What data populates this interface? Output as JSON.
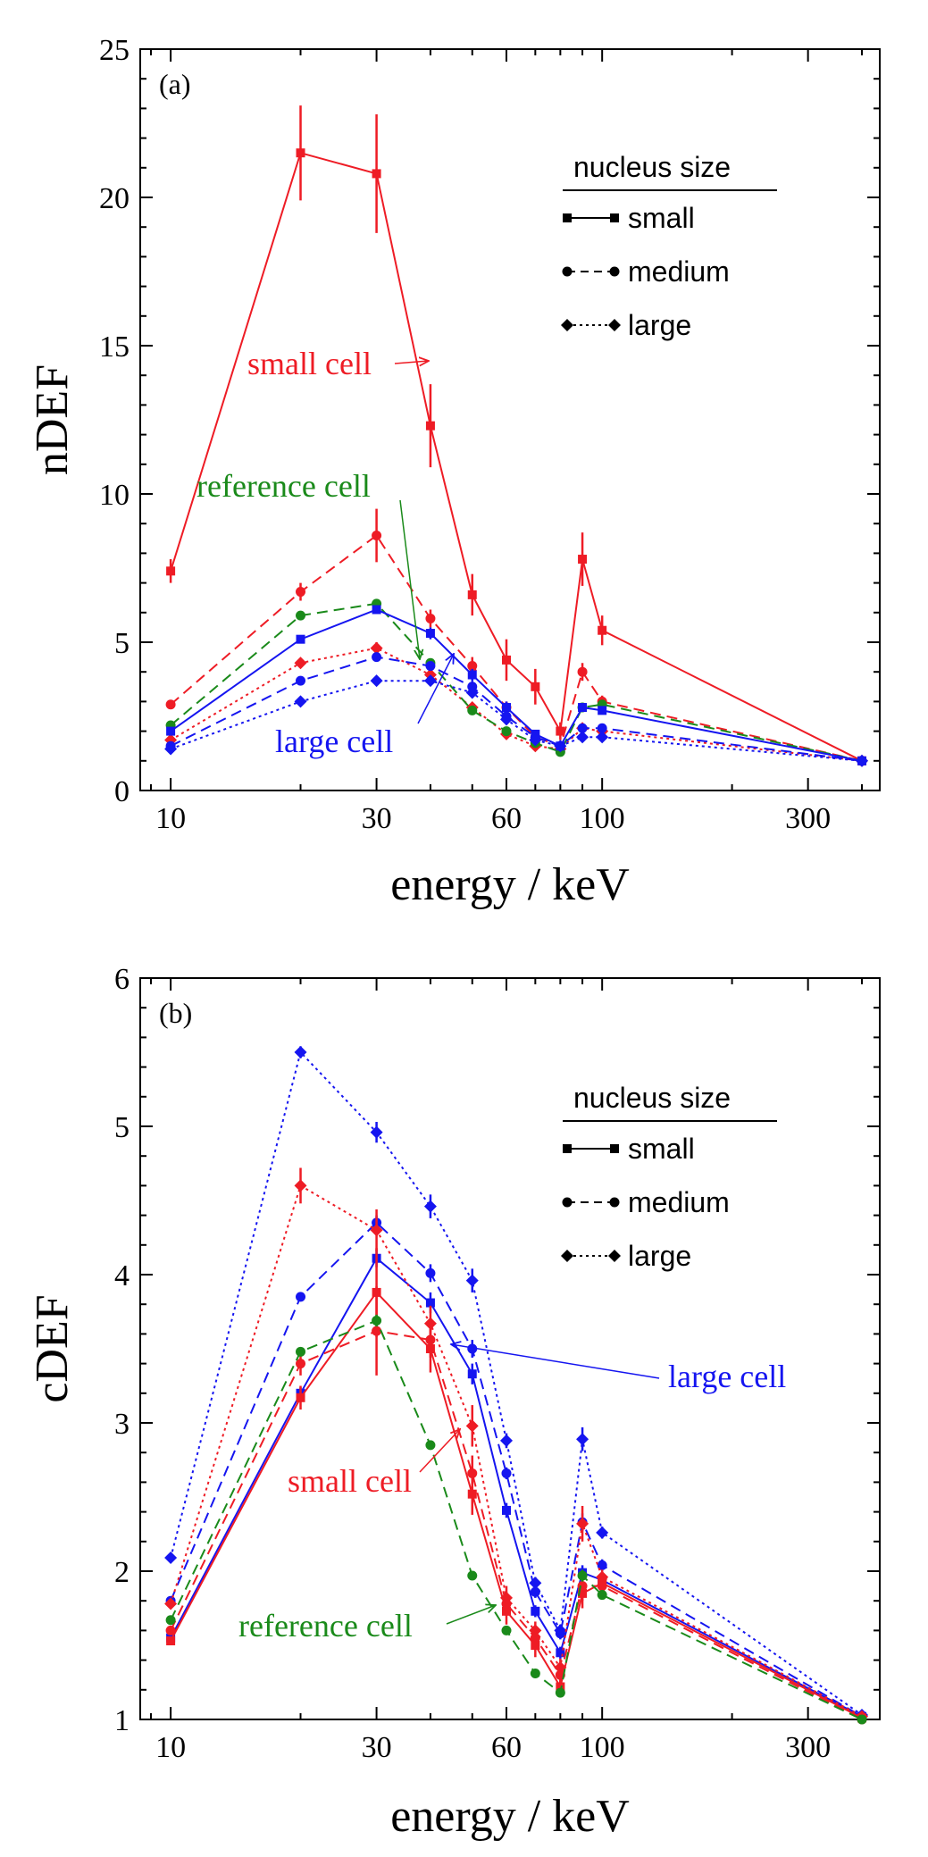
{
  "colors": {
    "red": "#ee1c25",
    "green": "#1a8a1a",
    "blue": "#1515f0"
  },
  "chart_data": [
    {
      "type": "line",
      "panel_label": "(a)",
      "ylabel": "nDEF",
      "xlabel": "energy / keV",
      "xscale": "log",
      "xlim": [
        8.5,
        440
      ],
      "ylim": [
        0,
        25
      ],
      "yticks": [
        0,
        5,
        10,
        15,
        20,
        25
      ],
      "xticks": [
        10,
        30,
        60,
        100,
        300
      ],
      "legend_title": "nucleus size",
      "legend": [
        {
          "label": "small",
          "style": "solid",
          "marker": "square"
        },
        {
          "label": "medium",
          "style": "dashed",
          "marker": "circle"
        },
        {
          "label": "large",
          "style": "dotted",
          "marker": "diamond"
        }
      ],
      "annotations": [
        {
          "text": "small cell",
          "color": "red"
        },
        {
          "text": "reference cell",
          "color": "green"
        },
        {
          "text": "large cell",
          "color": "blue"
        }
      ],
      "series": [
        {
          "name": "small cell, small nucleus",
          "color": "red",
          "style": "solid",
          "marker": "square",
          "x": [
            10,
            20,
            30,
            40,
            50,
            60,
            70,
            80,
            90,
            100,
            400
          ],
          "y": [
            7.4,
            21.5,
            20.8,
            12.3,
            6.6,
            4.4,
            3.5,
            2.0,
            7.8,
            5.4,
            1.0
          ],
          "err": [
            0.4,
            1.6,
            2.0,
            1.4,
            0.7,
            0.7,
            0.6,
            0.3,
            0.9,
            0.5,
            0.05
          ]
        },
        {
          "name": "small cell, medium nucleus",
          "color": "red",
          "style": "dashed",
          "marker": "circle",
          "x": [
            10,
            20,
            30,
            40,
            50,
            60,
            70,
            80,
            90,
            100,
            400
          ],
          "y": [
            2.9,
            6.7,
            8.6,
            5.8,
            4.2,
            2.8,
            1.8,
            1.5,
            4.0,
            3.0,
            1.0
          ],
          "err": [
            0.1,
            0.3,
            0.9,
            0.3,
            0.3,
            0.2,
            0.1,
            0.1,
            0.3,
            0.2,
            0.05
          ]
        },
        {
          "name": "small cell, large nucleus",
          "color": "red",
          "style": "dotted",
          "marker": "diamond",
          "x": [
            10,
            20,
            30,
            40,
            50,
            60,
            70,
            80,
            90,
            100,
            400
          ],
          "y": [
            1.7,
            4.3,
            4.8,
            3.9,
            2.8,
            1.9,
            1.5,
            1.4,
            2.1,
            2.0,
            1.0
          ],
          "err": [
            0.1,
            0.1,
            0.2,
            0.1,
            0.1,
            0.1,
            0.1,
            0.1,
            0.1,
            0.1,
            0.05
          ]
        },
        {
          "name": "reference cell, medium nucleus",
          "color": "green",
          "style": "dashed",
          "marker": "circle",
          "x": [
            10,
            20,
            30,
            40,
            50,
            60,
            70,
            80,
            90,
            100,
            400
          ],
          "y": [
            2.2,
            5.9,
            6.3,
            4.3,
            2.7,
            2.0,
            1.6,
            1.3,
            2.8,
            2.9,
            1.0
          ],
          "err": [
            0.1,
            0.1,
            0.1,
            0.1,
            0.1,
            0.1,
            0.1,
            0.1,
            0.1,
            0.1,
            0.05
          ]
        },
        {
          "name": "large cell, small nucleus",
          "color": "blue",
          "style": "solid",
          "marker": "square",
          "x": [
            10,
            20,
            30,
            40,
            50,
            60,
            70,
            80,
            90,
            100,
            400
          ],
          "y": [
            2.0,
            5.1,
            6.1,
            5.3,
            3.9,
            2.8,
            1.9,
            1.5,
            2.8,
            2.7,
            1.0
          ],
          "err": [
            0.1,
            0.1,
            0.1,
            0.2,
            0.2,
            0.2,
            0.1,
            0.1,
            0.1,
            0.1,
            0.05
          ]
        },
        {
          "name": "large cell, medium nucleus",
          "color": "blue",
          "style": "dashed",
          "marker": "circle",
          "x": [
            10,
            20,
            30,
            40,
            50,
            60,
            70,
            80,
            90,
            100,
            400
          ],
          "y": [
            1.5,
            3.7,
            4.5,
            4.2,
            3.5,
            2.5,
            1.8,
            1.5,
            2.1,
            2.1,
            1.0
          ],
          "err": [
            0.1,
            0.1,
            0.1,
            0.1,
            0.2,
            0.1,
            0.1,
            0.1,
            0.1,
            0.1,
            0.05
          ]
        },
        {
          "name": "large cell, large nucleus",
          "color": "blue",
          "style": "dotted",
          "marker": "diamond",
          "x": [
            10,
            20,
            30,
            40,
            50,
            60,
            70,
            80,
            90,
            100,
            400
          ],
          "y": [
            1.4,
            3.0,
            3.7,
            3.7,
            3.3,
            2.4,
            1.7,
            1.5,
            1.8,
            1.8,
            1.0
          ],
          "err": [
            0.1,
            0.1,
            0.1,
            0.1,
            0.1,
            0.1,
            0.1,
            0.1,
            0.1,
            0.1,
            0.05
          ]
        }
      ]
    },
    {
      "type": "line",
      "panel_label": "(b)",
      "ylabel": "cDEF",
      "xlabel": "energy / keV",
      "xscale": "log",
      "xlim": [
        8.5,
        440
      ],
      "ylim": [
        1,
        6
      ],
      "yticks": [
        1,
        2,
        3,
        4,
        5,
        6
      ],
      "xticks": [
        10,
        30,
        60,
        100,
        300
      ],
      "legend_title": "nucleus size",
      "legend": [
        {
          "label": "small",
          "style": "solid",
          "marker": "square"
        },
        {
          "label": "medium",
          "style": "dashed",
          "marker": "circle"
        },
        {
          "label": "large",
          "style": "dotted",
          "marker": "diamond"
        }
      ],
      "annotations": [
        {
          "text": "large cell",
          "color": "blue"
        },
        {
          "text": "small cell",
          "color": "red"
        },
        {
          "text": "reference cell",
          "color": "green"
        }
      ],
      "series": [
        {
          "name": "large cell, large nucleus",
          "color": "blue",
          "style": "dotted",
          "marker": "diamond",
          "x": [
            10,
            20,
            30,
            40,
            50,
            60,
            70,
            80,
            90,
            100,
            400
          ],
          "y": [
            2.09,
            5.5,
            4.96,
            4.46,
            3.96,
            2.88,
            1.92,
            1.6,
            2.89,
            2.26,
            1.03
          ],
          "err": [
            0.03,
            0.04,
            0.07,
            0.08,
            0.08,
            0.05,
            0.04,
            0.04,
            0.08,
            0.04,
            0.02
          ]
        },
        {
          "name": "large cell, medium nucleus",
          "color": "blue",
          "style": "dashed",
          "marker": "circle",
          "x": [
            10,
            20,
            30,
            40,
            50,
            60,
            70,
            80,
            90,
            100,
            400
          ],
          "y": [
            1.8,
            3.85,
            4.35,
            4.01,
            3.5,
            2.66,
            1.86,
            1.58,
            2.33,
            2.04,
            1.02
          ],
          "err": [
            0.02,
            0.03,
            0.05,
            0.06,
            0.06,
            0.04,
            0.04,
            0.04,
            0.06,
            0.04,
            0.02
          ]
        },
        {
          "name": "large cell, small nucleus",
          "color": "blue",
          "style": "solid",
          "marker": "square",
          "x": [
            10,
            20,
            30,
            40,
            50,
            60,
            70,
            80,
            90,
            100,
            400
          ],
          "y": [
            1.55,
            3.2,
            4.11,
            3.81,
            3.33,
            2.41,
            1.73,
            1.45,
            1.99,
            1.94,
            1.02
          ],
          "err": [
            0.02,
            0.04,
            0.06,
            0.07,
            0.07,
            0.05,
            0.04,
            0.04,
            0.05,
            0.04,
            0.02
          ]
        },
        {
          "name": "small cell, large nucleus",
          "color": "red",
          "style": "dotted",
          "marker": "diamond",
          "x": [
            10,
            20,
            30,
            40,
            50,
            60,
            70,
            80,
            90,
            100,
            400
          ],
          "y": [
            1.78,
            4.6,
            4.3,
            3.67,
            2.98,
            1.82,
            1.6,
            1.35,
            2.32,
            1.96,
            1.02
          ],
          "err": [
            0.03,
            0.12,
            0.14,
            0.12,
            0.14,
            0.08,
            0.06,
            0.06,
            0.12,
            0.05,
            0.02
          ]
        },
        {
          "name": "small cell, small nucleus",
          "color": "red",
          "style": "solid",
          "marker": "square",
          "x": [
            10,
            20,
            30,
            40,
            50,
            60,
            70,
            80,
            90,
            100,
            400
          ],
          "y": [
            1.53,
            3.17,
            3.88,
            3.5,
            2.52,
            1.73,
            1.5,
            1.22,
            1.85,
            1.92,
            1.01
          ],
          "err": [
            0.03,
            0.08,
            0.3,
            0.16,
            0.14,
            0.09,
            0.08,
            0.06,
            0.1,
            0.06,
            0.02
          ]
        },
        {
          "name": "small cell, medium nucleus",
          "color": "red",
          "style": "dashed",
          "marker": "circle",
          "x": [
            10,
            20,
            30,
            40,
            50,
            60,
            70,
            80,
            90,
            100,
            400
          ],
          "y": [
            1.6,
            3.4,
            3.62,
            3.56,
            2.66,
            1.78,
            1.55,
            1.3,
            1.9,
            1.9,
            1.0
          ],
          "err": [
            0.03,
            0.08,
            0.3,
            0.12,
            0.12,
            0.08,
            0.06,
            0.06,
            0.1,
            0.06,
            0.02
          ]
        },
        {
          "name": "reference cell, medium nucleus",
          "color": "green",
          "style": "dashed",
          "marker": "circle",
          "x": [
            10,
            20,
            30,
            40,
            50,
            60,
            70,
            80,
            90,
            100,
            400
          ],
          "y": [
            1.67,
            3.48,
            3.69,
            2.85,
            1.97,
            1.6,
            1.31,
            1.18,
            1.97,
            1.84,
            1.0
          ],
          "err": [
            0.02,
            0.03,
            0.04,
            0.03,
            0.03,
            0.03,
            0.02,
            0.02,
            0.04,
            0.03,
            0.01
          ]
        }
      ]
    }
  ]
}
